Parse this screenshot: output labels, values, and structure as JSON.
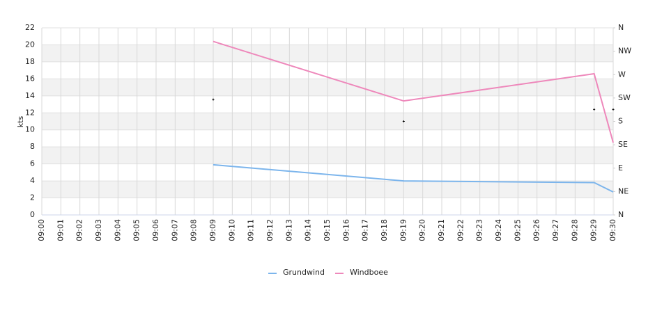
{
  "chart_data": {
    "type": "line",
    "y_label": "kts",
    "categories": [
      "09:00",
      "09:01",
      "09:02",
      "09:03",
      "09:04",
      "09:05",
      "09:06",
      "09:07",
      "09:08",
      "09:09",
      "09:10",
      "09:11",
      "09:12",
      "09:13",
      "09:14",
      "09:15",
      "09:16",
      "09:17",
      "09:18",
      "09:19",
      "09:20",
      "09:21",
      "09:22",
      "09:23",
      "09:24",
      "09:25",
      "09:26",
      "09:27",
      "09:28",
      "09:29",
      "09:30"
    ],
    "series": [
      {
        "name": "Grundwind",
        "color": "#7cb5ec",
        "values": [
          null,
          null,
          null,
          null,
          null,
          null,
          null,
          null,
          null,
          5.9,
          null,
          null,
          null,
          null,
          null,
          null,
          null,
          null,
          null,
          4.0,
          null,
          null,
          null,
          null,
          null,
          null,
          null,
          null,
          null,
          3.8,
          2.7
        ]
      },
      {
        "name": "Windboee",
        "color": "#ee88bb",
        "values": [
          null,
          null,
          null,
          null,
          null,
          null,
          null,
          null,
          null,
          20.4,
          null,
          null,
          null,
          null,
          null,
          null,
          null,
          null,
          null,
          13.4,
          null,
          null,
          null,
          null,
          null,
          null,
          null,
          null,
          null,
          16.6,
          8.5
        ]
      },
      {
        "axis": "y2",
        "color": "#000000",
        "values": [
          null,
          null,
          null,
          null,
          null,
          null,
          null,
          null,
          null,
          222,
          null,
          null,
          null,
          null,
          null,
          null,
          null,
          null,
          null,
          180,
          null,
          null,
          null,
          null,
          null,
          null,
          null,
          null,
          null,
          203,
          203
        ]
      }
    ],
    "ylim": [
      0,
      22
    ],
    "yticks": [
      0,
      2,
      4,
      6,
      8,
      10,
      12,
      14,
      16,
      18,
      20,
      22
    ],
    "y2lim": [
      0,
      360
    ],
    "y2ticks": [
      {
        "value": 0,
        "label": "N"
      },
      {
        "value": 45,
        "label": "NE"
      },
      {
        "value": 90,
        "label": "E"
      },
      {
        "value": 135,
        "label": "SE"
      },
      {
        "value": 180,
        "label": "S"
      },
      {
        "value": 225,
        "label": "SW"
      },
      {
        "value": 270,
        "label": "W"
      },
      {
        "value": 315,
        "label": "NW"
      },
      {
        "value": 360,
        "label": "N"
      }
    ],
    "grid": true
  }
}
